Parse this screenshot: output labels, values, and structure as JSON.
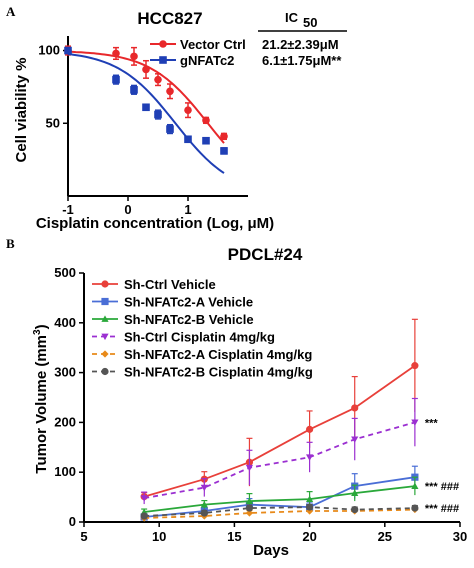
{
  "panel_a": {
    "letter": "A",
    "chart_data": {
      "type": "scatter",
      "title": "HCC827",
      "xlabel": "Cisplatin concentration (Log, μM)",
      "ylabel": "Cell viability %",
      "xlim": [
        -1,
        2
      ],
      "ylim": [
        0,
        110
      ],
      "xticks": [
        -1,
        0,
        1
      ],
      "yticks": [
        50,
        100
      ],
      "ic50_header": "IC",
      "ic50_header_sub": "50",
      "series": [
        {
          "name": "Vector Ctrl",
          "color": "#e8282b",
          "marker": "circle",
          "ic50": "21.2±2.39μM",
          "x": [
            -1.0,
            -0.2,
            0.1,
            0.3,
            0.5,
            0.7,
            1.0,
            1.3,
            1.6
          ],
          "y": [
            100,
            98,
            96,
            87,
            80,
            72,
            59,
            52,
            41
          ],
          "err": [
            3,
            4,
            6,
            6,
            4,
            5,
            5,
            2,
            2
          ],
          "fit_logic50": 1.33
        },
        {
          "name": "gNFATc2",
          "color": "#1f3fb5",
          "marker": "square",
          "ic50": "6.1±1.75μM**",
          "x": [
            -1.0,
            -0.2,
            0.1,
            0.3,
            0.5,
            0.7,
            1.0,
            1.3,
            1.6
          ],
          "y": [
            100,
            80,
            73,
            61,
            56,
            46,
            39,
            38,
            31
          ],
          "err": [
            2,
            3,
            3,
            2,
            3,
            3,
            2,
            2,
            2
          ],
          "fit_logic50": 0.79
        }
      ]
    }
  },
  "panel_b": {
    "letter": "B",
    "chart_data": {
      "type": "line",
      "title": "PDCL#24",
      "xlabel": "Days",
      "ylabel": "Tumor Volume (mm",
      "ylabel_sup": "3",
      "ylabel_end": ")",
      "xlim": [
        5,
        30
      ],
      "ylim": [
        0,
        500
      ],
      "xticks": [
        5,
        10,
        15,
        20,
        25,
        30
      ],
      "yticks": [
        0,
        100,
        200,
        300,
        400,
        500
      ],
      "x": [
        9,
        13,
        16,
        20,
        23,
        27
      ],
      "series": [
        {
          "name": "Sh-Ctrl  Vehicle",
          "color": "#e8403a",
          "marker": "circle",
          "dash": "",
          "values": [
            51,
            86,
            120,
            186,
            229,
            314
          ],
          "err": [
            8,
            15,
            48,
            37,
            63,
            93
          ]
        },
        {
          "name": "Sh-NFATc2-A  Vehicle",
          "color": "#4a6ed6",
          "marker": "square",
          "dash": "",
          "values": [
            10,
            22,
            35,
            30,
            72,
            90
          ],
          "err": [
            5,
            8,
            12,
            10,
            25,
            22
          ]
        },
        {
          "name": "Sh-NFATc2-B  Vehicle",
          "color": "#2aa83a",
          "marker": "triangle",
          "dash": "",
          "values": [
            20,
            35,
            42,
            46,
            58,
            72
          ],
          "err": [
            6,
            8,
            15,
            15,
            16,
            18
          ]
        },
        {
          "name": "Sh-Ctrl  Cisplatin 4mg/kg",
          "color": "#9b2fd1",
          "marker": "invtriangle",
          "dash": "5,4",
          "values": [
            48,
            69,
            109,
            130,
            166,
            200
          ],
          "err": [
            12,
            18,
            35,
            30,
            42,
            48
          ]
        },
        {
          "name": "Sh-NFATc2-A Cisplatin 4mg/kg",
          "color": "#e88a1a",
          "marker": "diamond",
          "dash": "5,4",
          "values": [
            8,
            12,
            18,
            22,
            22,
            25
          ],
          "err": [
            3,
            4,
            5,
            5,
            5,
            5
          ]
        },
        {
          "name": "Sh-NFATc2-B Cisplatin 4mg/kg",
          "color": "#555555",
          "marker": "circle",
          "dash": "5,4",
          "values": [
            12,
            18,
            28,
            30,
            25,
            28
          ],
          "err": [
            4,
            5,
            6,
            5,
            5,
            5
          ]
        }
      ],
      "annotations": [
        "***",
        "*** ###",
        "*** ###"
      ]
    }
  }
}
